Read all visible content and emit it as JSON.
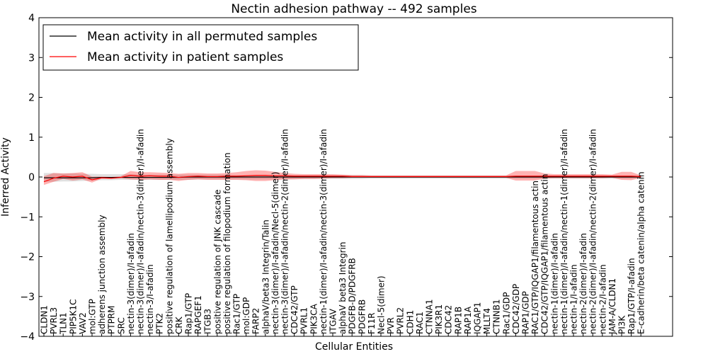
{
  "chart_data": {
    "type": "line",
    "title": "Nectin adhesion pathway -- 492 samples",
    "xlabel": "Cellular Entities",
    "ylabel": "Inferred Activity",
    "ylim": [
      -4,
      4
    ],
    "yticks": [
      -4,
      -3,
      -2,
      -1,
      0,
      1,
      2,
      3,
      4
    ],
    "ytick_labels": [
      "−4",
      "−3",
      "−2",
      "−1",
      "0",
      "1",
      "2",
      "3",
      "4"
    ],
    "legend_position": "top-left",
    "categories": [
      "CLDN1",
      "PVRL3",
      "TLN1",
      "PIP5K1C",
      "VAV2",
      "mol:GTP",
      "adherens junction assembly",
      "PTPRM",
      "SRC",
      "nectin-3(dimer)/I-afadin",
      "nectin-3(dimer)/I-afadin/nectin-3(dimer)/I-afadin",
      "nectin-3/I-afadin",
      "PTK2",
      "positive regulation of lamellipodium assembly",
      "CRK",
      "Rap1/GTP",
      "RAPGEF1",
      "ITGB3",
      "positive regulation of JNK cascade",
      "positive regulation of filopodium formation",
      "Rac1/GTP",
      "mol:GDP",
      "FARP2",
      "alphaV/beta3 Integrin/Talin",
      "nectin-3(dimer)/I-afadin/Necl-5(dimer)",
      "nectin-3(dimer)/I-afadin/nectin-2(dimer)/I-afadin",
      "CDC42/GTP",
      "PVRL1",
      "PIK3CA",
      "nectin-1(dimer)/I-afadin/nectin-3(dimer)/I-afadin",
      "ITGAV",
      "alphaV beta3 Integrin",
      "PDGFB-D/PDGFRB",
      "PDGFRB",
      "F11R",
      "Necl-5(dimer)",
      "PVR",
      "PVRL2",
      "CDH1",
      "RAC1",
      "CTNNA1",
      "PIK3R1",
      "CDC42",
      "RAP1B",
      "RAP1A",
      "IQGAP1",
      "MLLT4",
      "CTNNB1",
      "Rac1/GDP",
      "CDC42/GDP",
      "RAP1/GDP",
      "RAC1/GTP/IQGAP1/filamentous actin",
      "CDC42/GTP/IQGAP1/filamentous actin",
      "nectin-1(dimer)/I-afadin",
      "nectin-1(dimer)/I-afadin/nectin-1(dimer)/I-afadin",
      "nectin-1/I-afadin",
      "nectin-2(dimer)/I-afadin",
      "nectin-2(dimer)/I-afadin/nectin-2(dimer)/I-afadin",
      "nectin-2/I-afadin",
      "JAM-A/CLDN1",
      "PI3K",
      "Rap1/GTP/I-afadin",
      "E-cadherin/beta catenin/alpha catenin"
    ],
    "series": [
      {
        "name": "Mean activity in all permuted samples",
        "color": "#000000",
        "values": [
          -0.02,
          -0.02,
          -0.02,
          -0.02,
          -0.02,
          -0.02,
          -0.01,
          -0.01,
          -0.01,
          -0.01,
          -0.01,
          -0.01,
          -0.01,
          -0.01,
          -0.01,
          0,
          0,
          0,
          0,
          0,
          0,
          0,
          0,
          0,
          0,
          0,
          0,
          0,
          0,
          0,
          0,
          0,
          0,
          0,
          0,
          0,
          0,
          0,
          0,
          0,
          0,
          0,
          0,
          0,
          0,
          0,
          0,
          0,
          0,
          0,
          0,
          0,
          0,
          0,
          0,
          0,
          0,
          0,
          0,
          0,
          0,
          0,
          0
        ],
        "band_lower": [
          -0.12,
          -0.12,
          -0.11,
          -0.11,
          -0.1,
          -0.09,
          -0.08,
          -0.08,
          -0.07,
          -0.07,
          -0.07,
          -0.07,
          -0.07,
          -0.07,
          -0.07,
          -0.07,
          -0.06,
          -0.06,
          -0.06,
          -0.06,
          -0.06,
          -0.06,
          -0.06,
          -0.06,
          -0.06,
          -0.06,
          -0.05,
          -0.05,
          -0.05,
          -0.05,
          -0.05,
          -0.05,
          -0.05,
          -0.05,
          -0.04,
          -0.04,
          -0.04,
          -0.04,
          -0.04,
          -0.04,
          -0.04,
          -0.04,
          -0.04,
          -0.04,
          -0.04,
          -0.04,
          -0.04,
          -0.04,
          -0.04,
          -0.04,
          -0.04,
          -0.04,
          -0.04,
          -0.04,
          -0.04,
          -0.04,
          -0.04,
          -0.04,
          -0.04,
          -0.04,
          -0.04,
          -0.04,
          -0.04
        ],
        "band_upper": [
          0.1,
          0.1,
          0.09,
          0.09,
          0.08,
          0.08,
          0.07,
          0.07,
          0.07,
          0.07,
          0.06,
          0.06,
          0.06,
          0.06,
          0.06,
          0.06,
          0.06,
          0.06,
          0.06,
          0.06,
          0.05,
          0.05,
          0.05,
          0.05,
          0.05,
          0.05,
          0.05,
          0.05,
          0.05,
          0.05,
          0.05,
          0.05,
          0.05,
          0.05,
          0.04,
          0.04,
          0.04,
          0.04,
          0.04,
          0.04,
          0.04,
          0.04,
          0.04,
          0.04,
          0.04,
          0.04,
          0.04,
          0.04,
          0.04,
          0.04,
          0.04,
          0.04,
          0.04,
          0.04,
          0.04,
          0.04,
          0.04,
          0.04,
          0.04,
          0.04,
          0.04,
          0.04,
          0.04
        ]
      },
      {
        "name": "Mean activity in patient samples",
        "color": "#ff0000",
        "values": [
          -0.12,
          -0.03,
          0.02,
          0,
          0.02,
          -0.07,
          -0.02,
          -0.03,
          -0.01,
          0.04,
          0.02,
          0.03,
          0.02,
          0.02,
          -0.01,
          0.01,
          0.02,
          0.01,
          0.01,
          0.02,
          0.02,
          0.03,
          0.04,
          0.04,
          0.03,
          0.03,
          0.02,
          0.02,
          0.02,
          0.02,
          0.02,
          0.02,
          0.01,
          0.01,
          0.01,
          0.01,
          0.01,
          0.01,
          0.01,
          0.01,
          0.01,
          0.01,
          0.01,
          0.01,
          0.01,
          0.01,
          0.01,
          0.01,
          0.01,
          0.02,
          0.02,
          0.02,
          0.02,
          0.02,
          0.02,
          0.02,
          0.02,
          0.02,
          0.02,
          0.02,
          0.02,
          0.02,
          0.01
        ],
        "band_lower": [
          -0.2,
          -0.12,
          -0.05,
          -0.09,
          -0.06,
          -0.14,
          -0.04,
          -0.05,
          -0.03,
          -0.06,
          -0.07,
          -0.06,
          -0.07,
          -0.07,
          -0.1,
          -0.07,
          -0.06,
          -0.07,
          -0.07,
          -0.07,
          -0.07,
          -0.08,
          -0.1,
          -0.1,
          -0.08,
          -0.06,
          -0.06,
          -0.05,
          -0.05,
          -0.04,
          -0.03,
          -0.03,
          -0.02,
          -0.02,
          -0.02,
          -0.02,
          -0.02,
          -0.02,
          -0.02,
          -0.02,
          -0.02,
          -0.02,
          -0.02,
          -0.02,
          -0.02,
          -0.02,
          -0.02,
          -0.02,
          -0.02,
          -0.09,
          -0.09,
          -0.09,
          -0.04,
          -0.03,
          -0.03,
          -0.03,
          -0.03,
          -0.03,
          -0.03,
          -0.02,
          -0.07,
          -0.08,
          -0.02
        ],
        "band_upper": [
          0.02,
          0.1,
          0.09,
          0.1,
          0.12,
          0.01,
          0.01,
          0,
          0.02,
          0.15,
          0.12,
          0.12,
          0.11,
          0.1,
          0.08,
          0.1,
          0.1,
          0.09,
          0.09,
          0.1,
          0.12,
          0.15,
          0.17,
          0.16,
          0.13,
          0.1,
          0.08,
          0.07,
          0.07,
          0.07,
          0.07,
          0.06,
          0.05,
          0.05,
          0.04,
          0.04,
          0.04,
          0.04,
          0.04,
          0.04,
          0.04,
          0.04,
          0.04,
          0.04,
          0.04,
          0.04,
          0.04,
          0.04,
          0.04,
          0.15,
          0.15,
          0.15,
          0.09,
          0.07,
          0.07,
          0.07,
          0.07,
          0.07,
          0.07,
          0.06,
          0.13,
          0.13,
          0.04
        ]
      }
    ]
  }
}
